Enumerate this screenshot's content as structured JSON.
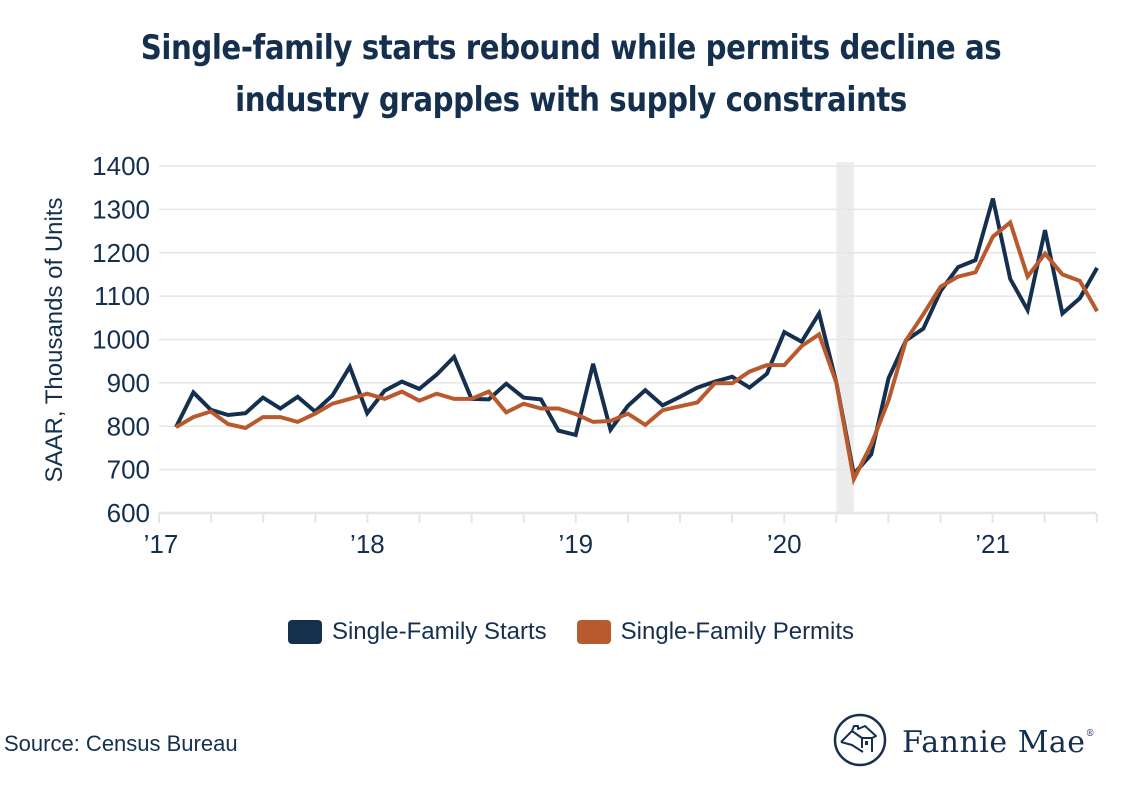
{
  "title_lines": [
    "Single-family starts rebound while permits decline as",
    "industry grapples with supply constraints"
  ],
  "source": "Source: Census Bureau",
  "logo": {
    "text": "Fannie Mae",
    "mark": "®",
    "icon": "house-circle-icon"
  },
  "colors": {
    "starts": "#15304f",
    "permits": "#b85a2e",
    "grid": "#e6e6e6",
    "recession": "#ececec",
    "text": "#15304f"
  },
  "chart_data": {
    "type": "line",
    "title": "Single-family starts rebound while permits decline as industry grapples with supply constraints",
    "xlabel": "",
    "ylabel": "SAAR, Thousands of Units",
    "ylim": [
      600,
      1400
    ],
    "yticks": [
      600,
      700,
      800,
      900,
      1000,
      1100,
      1200,
      1300,
      1400
    ],
    "xtick_labels": [
      "’17",
      "’18",
      "’19",
      "’20",
      "’21"
    ],
    "x_start": "2017-01",
    "x_end": "2021-06",
    "frequency": "monthly",
    "grid": true,
    "legend_position": "bottom",
    "shaded_region": {
      "label": "recession",
      "from": "2020-03",
      "to": "2020-04"
    },
    "series": [
      {
        "name": "Single-Family Starts",
        "values": [
          798,
          878,
          838,
          826,
          830,
          866,
          841,
          868,
          834,
          871,
          937,
          830,
          882,
          903,
          886,
          919,
          960,
          863,
          862,
          898,
          866,
          862,
          790,
          780,
          944,
          792,
          847,
          883,
          848,
          868,
          889,
          903,
          914,
          889,
          921,
          1017,
          995,
          1060,
          900,
          690,
          735,
          911,
          998,
          1025,
          1112,
          1167,
          1183,
          1325,
          1140,
          1068,
          1252,
          1060,
          1095,
          1165
        ]
      },
      {
        "name": "Single-Family Permits",
        "values": [
          798,
          821,
          834,
          805,
          796,
          821,
          821,
          810,
          829,
          852,
          863,
          875,
          863,
          880,
          859,
          875,
          863,
          863,
          880,
          832,
          852,
          841,
          841,
          828,
          810,
          812,
          829,
          803,
          837,
          846,
          855,
          899,
          899,
          926,
          941,
          941,
          985,
          1012,
          900,
          678,
          758,
          860,
          998,
          1058,
          1122,
          1145,
          1155,
          1237,
          1270,
          1145,
          1198,
          1150,
          1135,
          1065
        ]
      }
    ]
  }
}
